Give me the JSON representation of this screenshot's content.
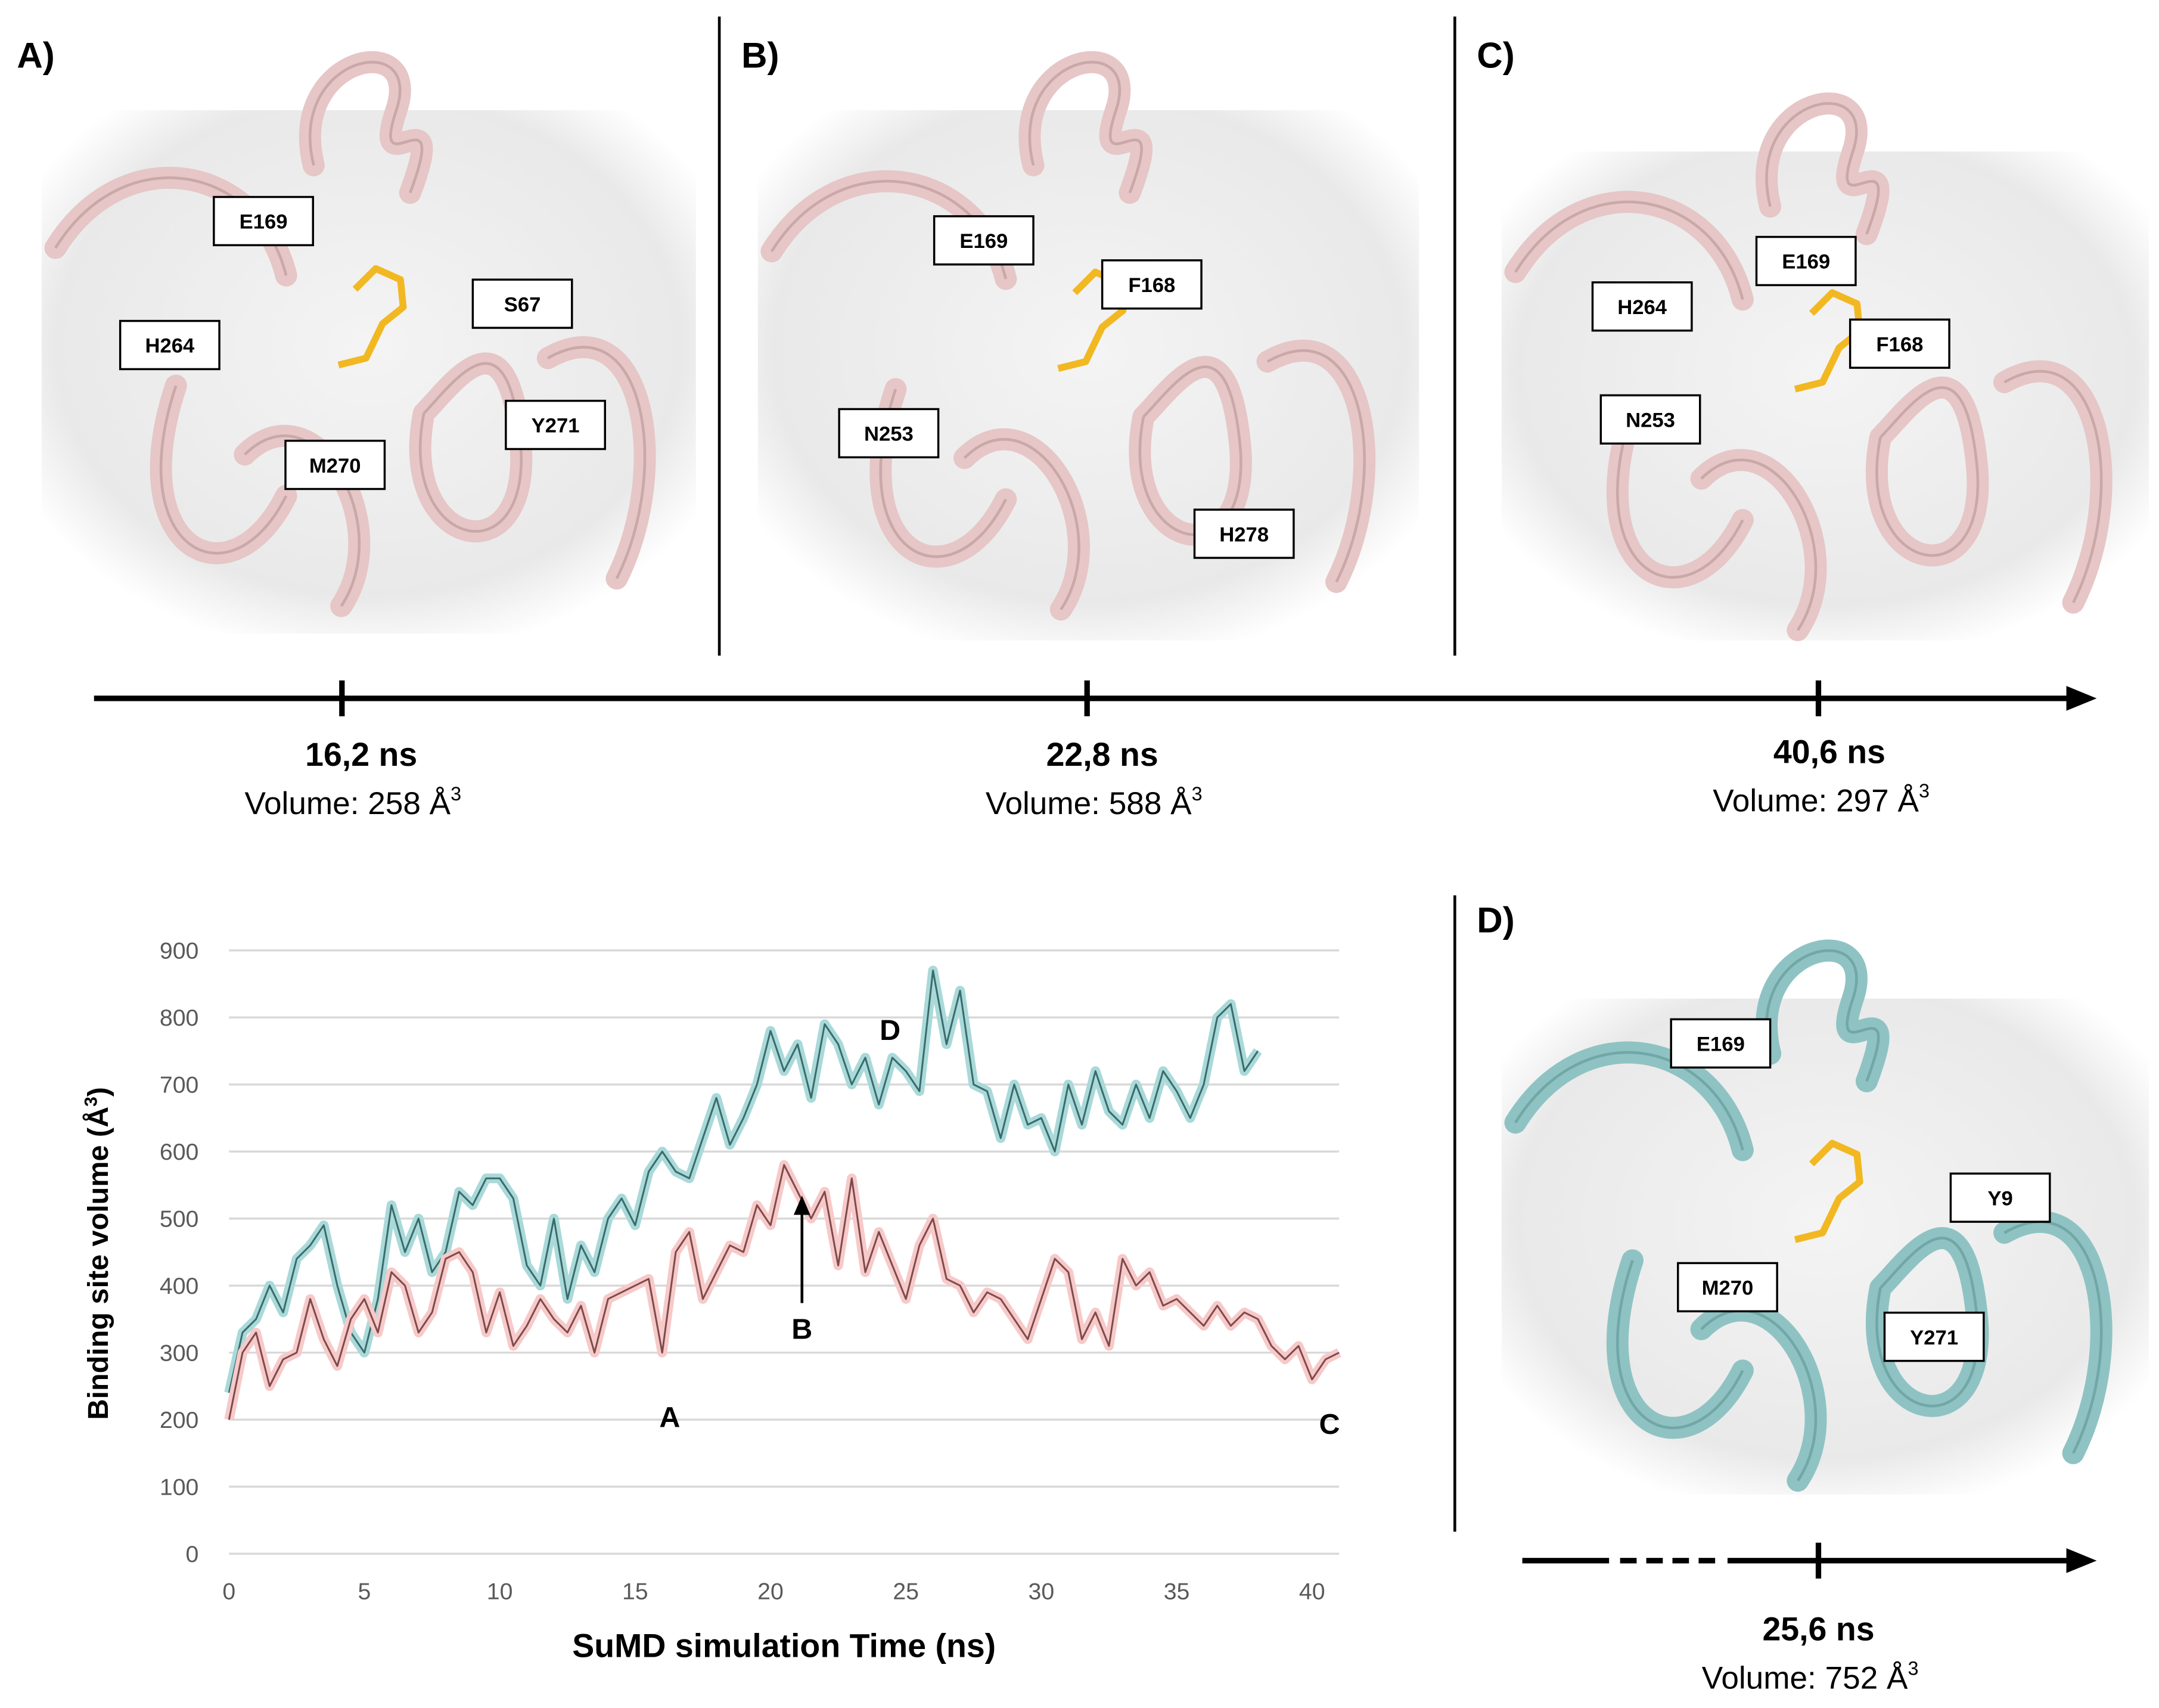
{
  "panels": [
    {
      "label": "A)",
      "residues": [
        "E169",
        "H264",
        "S67",
        "Y271",
        "M270"
      ],
      "time": "16,2 ns",
      "volume": "Volume: 258 Å",
      "volume_sup": "3"
    },
    {
      "label": "B)",
      "residues": [
        "E169",
        "F168",
        "N253",
        "H278"
      ],
      "time": "22,8 ns",
      "volume": "Volume: 588 Å",
      "volume_sup": "3"
    },
    {
      "label": "C)",
      "residues": [
        "E169",
        "H264",
        "F168",
        "N253"
      ],
      "time": "40,6 ns",
      "volume": "Volume: 297 Å",
      "volume_sup": "3"
    },
    {
      "label": "D)",
      "residues": [
        "E169",
        "Y9",
        "M270",
        "Y271"
      ],
      "time": "25,6 ns",
      "volume": "Volume: 752 Å",
      "volume_sup": "3"
    }
  ],
  "chart_data": {
    "type": "line",
    "xlabel": "SuMD simulation Time (ns)",
    "ylabel": "Binding site volume (Å",
    "ylabel_sup": "3",
    "ylabel_end": ")",
    "xlim": [
      0,
      41
    ],
    "xticks": [
      0,
      5,
      10,
      15,
      20,
      25,
      30,
      35,
      40
    ],
    "ylim": [
      0,
      900
    ],
    "yticks": [
      0,
      100,
      200,
      300,
      400,
      500,
      600,
      700,
      800,
      900
    ],
    "grid": true,
    "annotations": [
      "A",
      "B",
      "C",
      "D"
    ],
    "x": [
      0,
      0.5,
      1,
      1.5,
      2,
      2.5,
      3,
      3.5,
      4,
      4.5,
      5,
      5.5,
      6,
      6.5,
      7,
      7.5,
      8,
      8.5,
      9,
      9.5,
      10,
      10.5,
      11,
      11.5,
      12,
      12.5,
      13,
      13.5,
      14,
      14.5,
      15,
      15.5,
      16,
      16.5,
      17,
      17.5,
      18,
      18.5,
      19,
      19.5,
      20,
      20.5,
      21,
      21.5,
      22,
      22.5,
      23,
      23.5,
      24,
      24.5,
      25,
      25.5,
      26,
      26.5,
      27,
      27.5,
      28,
      28.5,
      29,
      29.5,
      30,
      30.5,
      31,
      31.5,
      32,
      32.5,
      33,
      33.5,
      34,
      34.5,
      35,
      35.5,
      36,
      36.5,
      37,
      37.5,
      38,
      38.5,
      39,
      39.5,
      40,
      40.5,
      41
    ],
    "series": [
      {
        "color": "#3b6b6b",
        "halo": "#a9d9d9",
        "values": [
          240,
          330,
          350,
          400,
          360,
          440,
          460,
          490,
          400,
          330,
          300,
          380,
          520,
          450,
          500,
          420,
          450,
          540,
          520,
          560,
          560,
          530,
          430,
          400,
          500,
          380,
          460,
          420,
          500,
          530,
          490,
          570,
          600,
          570,
          560,
          620,
          680,
          610,
          650,
          700,
          780,
          720,
          760,
          680,
          790,
          760,
          700,
          740,
          670,
          740,
          720,
          690,
          870,
          760,
          840,
          700,
          690,
          620,
          700,
          640,
          650,
          600,
          700,
          640,
          720,
          660,
          640,
          700,
          650,
          720,
          690,
          650,
          700,
          800,
          820,
          720,
          750,
          null,
          null,
          null,
          null,
          null,
          null
        ]
      },
      {
        "color": "#7d4b4b",
        "halo": "#f7c9c9",
        "values": [
          200,
          300,
          330,
          250,
          290,
          300,
          380,
          320,
          280,
          350,
          380,
          330,
          420,
          400,
          330,
          360,
          440,
          450,
          420,
          330,
          390,
          310,
          340,
          380,
          350,
          330,
          370,
          300,
          380,
          390,
          400,
          410,
          300,
          450,
          480,
          380,
          420,
          460,
          450,
          520,
          490,
          580,
          540,
          500,
          540,
          430,
          560,
          420,
          480,
          430,
          380,
          460,
          500,
          410,
          400,
          360,
          390,
          380,
          350,
          320,
          380,
          440,
          420,
          320,
          360,
          310,
          440,
          400,
          420,
          370,
          380,
          360,
          340,
          370,
          340,
          360,
          350,
          310,
          290,
          310,
          260,
          290,
          300
        ]
      }
    ]
  }
}
